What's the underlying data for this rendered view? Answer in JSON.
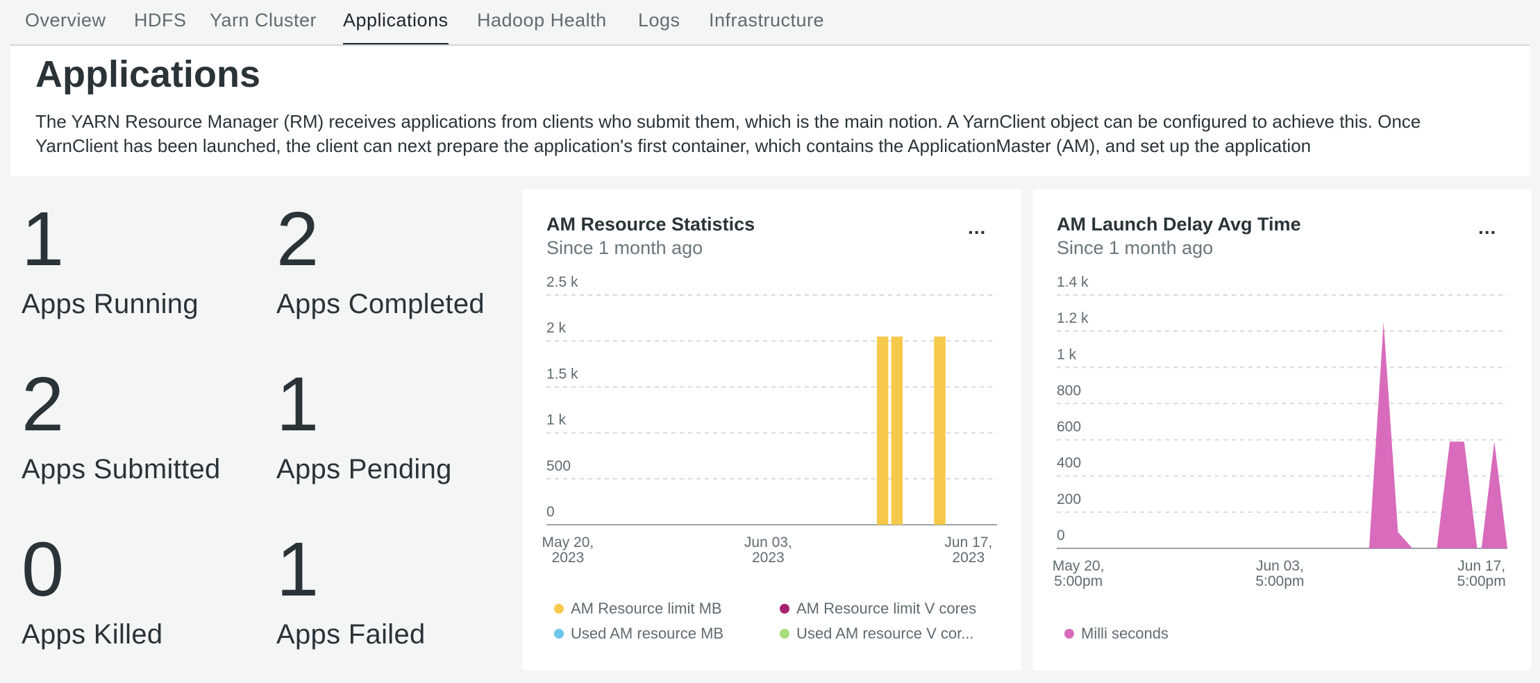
{
  "tabs": [
    {
      "label": "Overview"
    },
    {
      "label": "HDFS"
    },
    {
      "label": "Yarn Cluster"
    },
    {
      "label": "Applications"
    },
    {
      "label": "Hadoop Health"
    },
    {
      "label": "Logs"
    },
    {
      "label": "Infrastructure"
    }
  ],
  "active_tab": "Applications",
  "intro": {
    "title": "Applications",
    "body": "The YARN Resource Manager (RM) receives applications from clients who submit them, which is the main notion. A YarnClient object can be configured to achieve this. Once YarnClient has been launched, the client can next prepare the application's first container, which contains the ApplicationMaster (AM), and set up the application"
  },
  "billboards": [
    {
      "value": "1",
      "label": "Apps Running",
      "status": "green"
    },
    {
      "value": "2",
      "label": "Apps Completed",
      "status": "green"
    },
    {
      "value": "2",
      "label": "Apps Submitted",
      "status": "green"
    },
    {
      "value": "1",
      "label": "Apps Pending",
      "status": "yellow"
    },
    {
      "value": "0",
      "label": "Apps Killed",
      "status": "red"
    },
    {
      "value": "1",
      "label": "Apps Failed",
      "status": "red"
    }
  ],
  "colors": {
    "green": "#3a845f",
    "yellow": "#f9d05e",
    "red": "#a2241a",
    "bar": "#f6c94b",
    "area": "#d96bbd"
  },
  "cards": {
    "am_resource": {
      "title": "AM Resource Statistics",
      "subtitle": "Since 1 month ago",
      "menu": "..."
    },
    "am_launch": {
      "title": "AM Launch Delay Avg Time",
      "subtitle": "Since 1 month ago",
      "menu": "..."
    }
  },
  "chart_data": [
    {
      "type": "bar",
      "title": "AM Resource Statistics",
      "subtitle": "Since 1 month ago",
      "ylim": [
        0,
        2500
      ],
      "y_ticks": [
        {
          "value": 0,
          "label": "0"
        },
        {
          "value": 500,
          "label": "500"
        },
        {
          "value": 1000,
          "label": "1 k"
        },
        {
          "value": 1500,
          "label": "1.5 k"
        },
        {
          "value": 2000,
          "label": "2 k"
        },
        {
          "value": 2500,
          "label": "2.5 k"
        }
      ],
      "x_ticks": [
        {
          "day": 3,
          "line1": "May 20,",
          "line2": "2023"
        },
        {
          "day": 17,
          "line1": "Jun 03,",
          "line2": "2023"
        },
        {
          "day": 31,
          "line1": "Jun 17,",
          "line2": "2023"
        }
      ],
      "x_range_days": [
        1.5,
        33
      ],
      "series": [
        {
          "name": "AM Resource limit MB",
          "color": "#f6c94b",
          "points": [
            {
              "day": 25.0,
              "value": 2048
            },
            {
              "day": 26.0,
              "value": 2048
            },
            {
              "day": 29.0,
              "value": 2048
            }
          ]
        },
        {
          "name": "AM Resource limit V cores",
          "color": "#a6216f",
          "points": []
        },
        {
          "name": "Used AM resource MB",
          "color": "#6ec6ea",
          "points": []
        },
        {
          "name": "Used AM resource V cor...",
          "color": "#a8dc7c",
          "points": []
        }
      ]
    },
    {
      "type": "area",
      "title": "AM Launch Delay Avg Time",
      "subtitle": "Since 1 month ago",
      "ylim": [
        0,
        1400
      ],
      "y_ticks": [
        {
          "value": 0,
          "label": "0"
        },
        {
          "value": 200,
          "label": "200"
        },
        {
          "value": 400,
          "label": "400"
        },
        {
          "value": 600,
          "label": "600"
        },
        {
          "value": 800,
          "label": "800"
        },
        {
          "value": 1000,
          "label": "1 k"
        },
        {
          "value": 1200,
          "label": "1.2 k"
        },
        {
          "value": 1400,
          "label": "1.4 k"
        }
      ],
      "x_ticks": [
        {
          "day": 3,
          "line1": "May 20,",
          "line2": "5:00pm"
        },
        {
          "day": 17,
          "line1": "Jun 03,",
          "line2": "5:00pm"
        },
        {
          "day": 31,
          "line1": "Jun 17,",
          "line2": "5:00pm"
        }
      ],
      "x_range_days": [
        1.5,
        32.8
      ],
      "series": [
        {
          "name": "Milli seconds",
          "color": "#d96bbd",
          "segments": [
            [
              {
                "day": 23.2,
                "value": 0
              },
              {
                "day": 24.2,
                "value": 1250
              },
              {
                "day": 25.2,
                "value": 90
              },
              {
                "day": 26.2,
                "value": 0
              }
            ],
            [
              {
                "day": 27.9,
                "value": 0
              },
              {
                "day": 28.8,
                "value": 590
              },
              {
                "day": 29.8,
                "value": 590
              },
              {
                "day": 30.7,
                "value": 0
              }
            ],
            [
              {
                "day": 31.0,
                "value": 0
              },
              {
                "day": 31.9,
                "value": 590
              },
              {
                "day": 32.8,
                "value": 0
              }
            ]
          ]
        }
      ]
    }
  ]
}
